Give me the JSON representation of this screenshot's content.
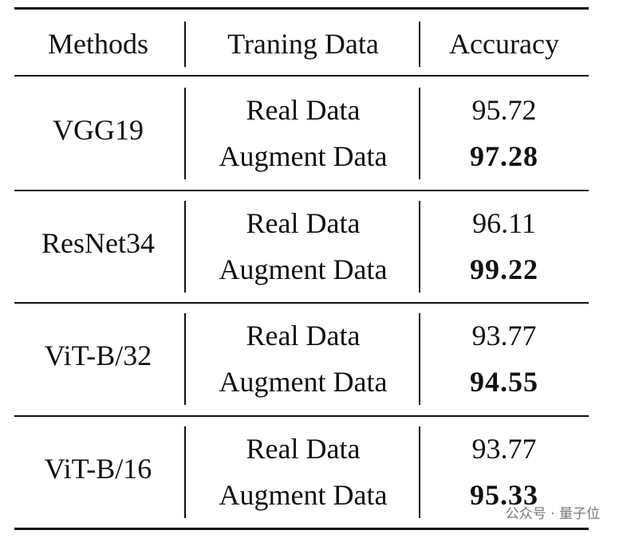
{
  "table": {
    "header": [
      "Methods",
      "Traning Data",
      "Accuracy"
    ],
    "groups": [
      {
        "method": "VGG19",
        "rows": [
          {
            "data": "Real Data",
            "accuracy": "95.72"
          },
          {
            "data": "Augment Data",
            "accuracy": "97.28"
          }
        ]
      },
      {
        "method": "ResNet34",
        "rows": [
          {
            "data": "Real Data",
            "accuracy": "96.11"
          },
          {
            "data": "Augment Data",
            "accuracy": "99.22"
          }
        ]
      },
      {
        "method": "ViT-B/32",
        "rows": [
          {
            "data": "Real Data",
            "accuracy": "93.77"
          },
          {
            "data": "Augment Data",
            "accuracy": "94.55"
          }
        ]
      },
      {
        "method": "ViT-B/16",
        "rows": [
          {
            "data": "Real Data",
            "accuracy": "93.77"
          },
          {
            "data": "Augment Data",
            "accuracy": "95.33"
          }
        ]
      }
    ]
  },
  "watermark": "公众号 · 量子位"
}
